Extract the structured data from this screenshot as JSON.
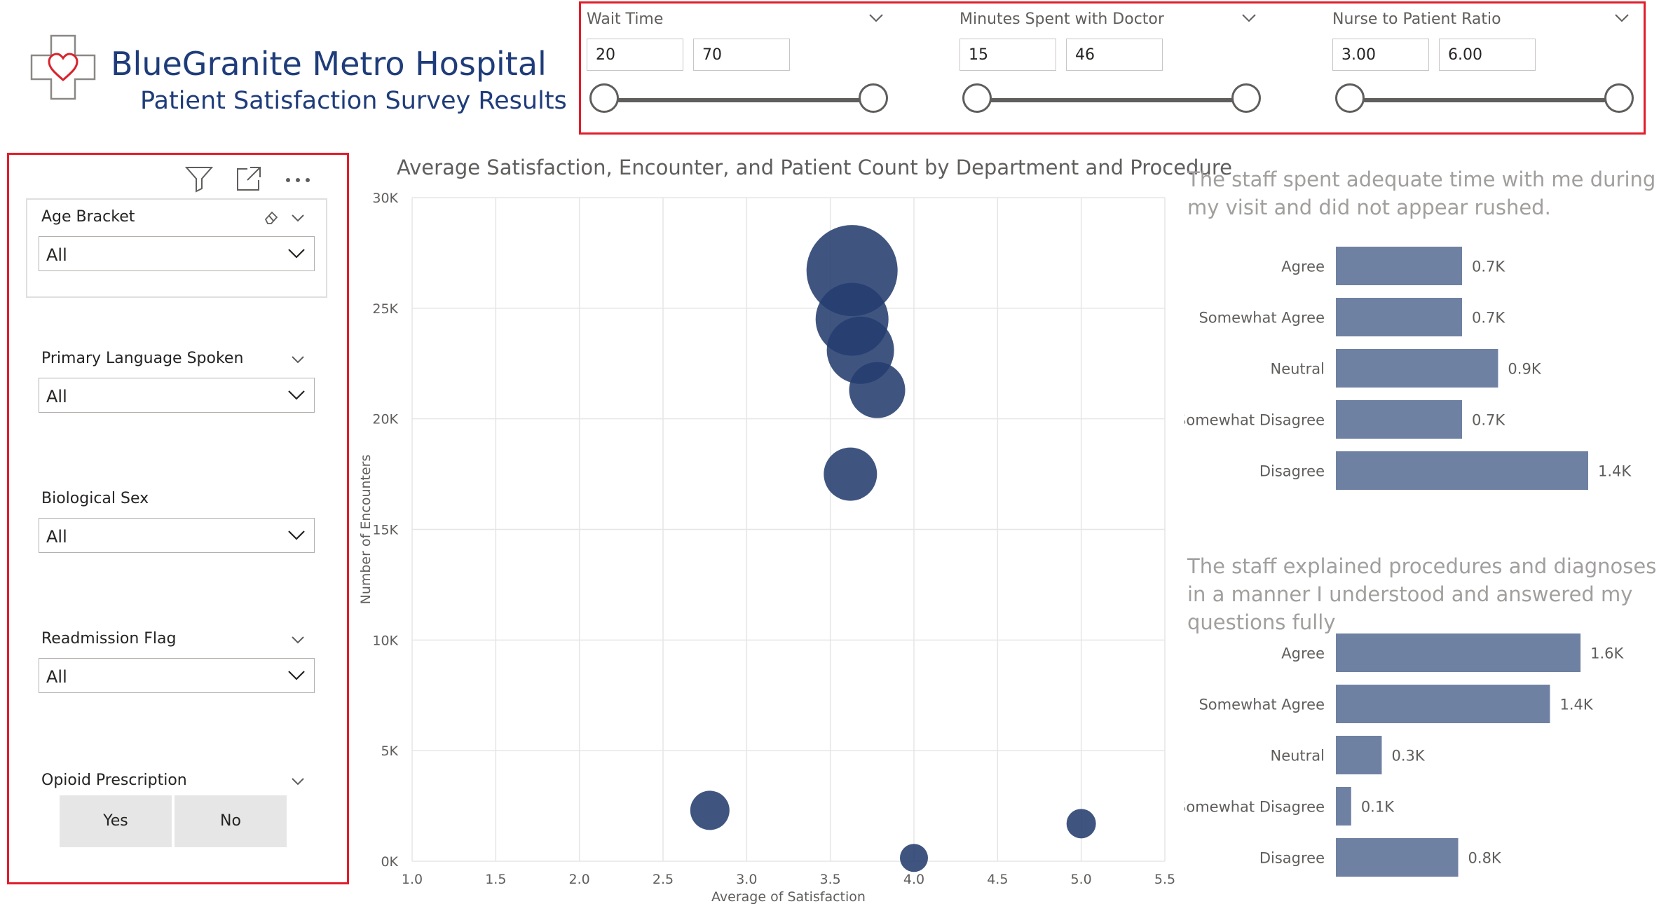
{
  "header": {
    "title": "BlueGranite Metro Hospital",
    "subtitle": "Patient Satisfaction Survey Results"
  },
  "range_slicers": [
    {
      "label": "Wait Time",
      "min": "20",
      "max": "70"
    },
    {
      "label": "Minutes Spent with Doctor",
      "min": "15",
      "max": "46"
    },
    {
      "label": "Nurse to Patient Ratio",
      "min": "3.00",
      "max": "6.00"
    }
  ],
  "filters": {
    "age_bracket": {
      "label": "Age Bracket",
      "value": "All"
    },
    "primary_language": {
      "label": "Primary Language Spoken",
      "value": "All"
    },
    "biological_sex": {
      "label": "Biological Sex",
      "value": "All"
    },
    "readmission": {
      "label": "Readmission Flag",
      "value": "All"
    },
    "opioid": {
      "label": "Opioid Prescription",
      "yes": "Yes",
      "no": "No"
    }
  },
  "colors": {
    "accent_border": "#e11d2b",
    "bubble_fill": "#243d6e",
    "bar_fill": "#6f81a3",
    "brand_blue": "#1f3c7a"
  },
  "chart_data": [
    {
      "type": "scatter",
      "title": "Average Satisfaction, Encounter, and Patient Count by Department and Procedure",
      "xlabel": "Average of Satisfaction",
      "ylabel": "Number of Encounters",
      "xlim": [
        1.0,
        5.5
      ],
      "ylim": [
        0,
        30000
      ],
      "x_ticks": [
        "1.0",
        "1.5",
        "2.0",
        "2.5",
        "3.0",
        "3.5",
        "4.0",
        "4.5",
        "5.0",
        "5.5"
      ],
      "y_ticks": [
        "0K",
        "5K",
        "10K",
        "15K",
        "20K",
        "25K",
        "30K"
      ],
      "grid": true,
      "points": [
        {
          "x": 3.63,
          "y": 26700,
          "size": 65
        },
        {
          "x": 3.78,
          "y": 21300,
          "size": 40
        },
        {
          "x": 3.68,
          "y": 23100,
          "size": 48
        },
        {
          "x": 3.63,
          "y": 24500,
          "size": 52
        },
        {
          "x": 3.62,
          "y": 17500,
          "size": 38
        },
        {
          "x": 2.78,
          "y": 2300,
          "size": 28
        },
        {
          "x": 4.0,
          "y": 150,
          "size": 20
        },
        {
          "x": 5.0,
          "y": 1700,
          "size": 21
        }
      ]
    },
    {
      "type": "bar",
      "title": "The staff spent adequate time with me during my visit and did not appear rushed.",
      "categories": [
        "Agree",
        "Somewhat Agree",
        "Neutral",
        "Somewhat Disagree",
        "Disagree"
      ],
      "values": [
        0.7,
        0.7,
        0.9,
        0.7,
        1.4
      ],
      "labels": [
        "0.7K",
        "0.7K",
        "0.9K",
        "0.7K",
        "1.4K"
      ],
      "max": 1.4
    },
    {
      "type": "bar",
      "title": "The staff explained procedures and diagnoses in a manner I understood and answered my questions fully",
      "categories": [
        "Agree",
        "Somewhat Agree",
        "Neutral",
        "Somewhat Disagree",
        "Disagree"
      ],
      "values": [
        1.6,
        1.4,
        0.3,
        0.1,
        0.8
      ],
      "labels": [
        "1.6K",
        "1.4K",
        "0.3K",
        "0.1K",
        "0.8K"
      ],
      "max": 1.65
    }
  ]
}
